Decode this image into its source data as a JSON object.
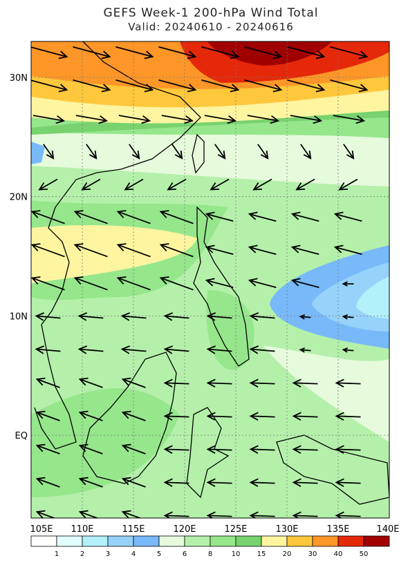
{
  "title": "GEFS Week-1 200-hPa Wind Total",
  "subtitle": "Valid: 20240610 - 20240616",
  "lon_labels": [
    "105E",
    "110E",
    "115E",
    "120E",
    "125E",
    "130E",
    "135E",
    "140E"
  ],
  "lat_labels": [
    "30N",
    "20N",
    "10N",
    "EQ"
  ],
  "colorbar": {
    "labels": [
      "1",
      "2",
      "3",
      "4",
      "5",
      "6",
      "8",
      "10",
      "15",
      "20",
      "30",
      "40",
      "50"
    ],
    "colors": [
      "#ffffff",
      "#e1ffff",
      "#b4f0fa",
      "#96d2fa",
      "#78b9fa",
      "#e6fadc",
      "#b4f0aa",
      "#96e68c",
      "#78d26e",
      "#fff5a0",
      "#ffc83c",
      "#ff9628",
      "#e6280a",
      "#a00000"
    ]
  }
}
